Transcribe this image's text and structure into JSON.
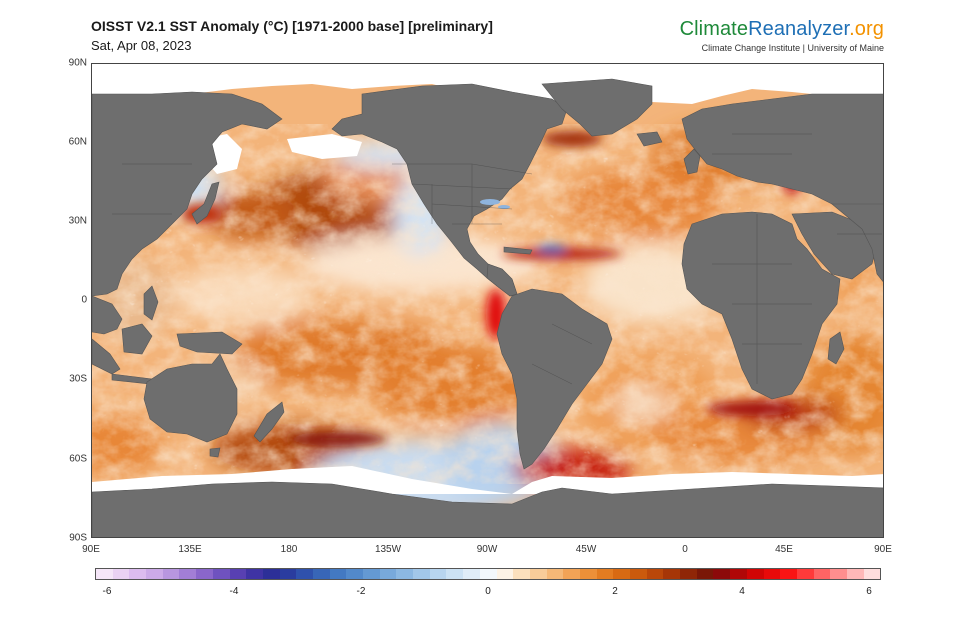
{
  "header": {
    "title": "OISST V2.1 SST Anomaly (°C) [1971-2000 base] [preliminary]",
    "date": "Sat, Apr 08, 2023"
  },
  "brand": {
    "name_part1": "Climate",
    "name_part2": "Reanalyzer",
    "name_part3": ".org",
    "tagline": "Climate Change Institute | University of Maine"
  },
  "map": {
    "projection": "equirectangular",
    "lon_range": [
      90,
      450
    ],
    "lat_range": [
      -90,
      90
    ],
    "land_color": "#6e6e6e",
    "ice_color": "#ffffff",
    "lat_labels": [
      "90N",
      "60N",
      "30N",
      "0",
      "30S",
      "60S",
      "90S"
    ],
    "lon_labels": [
      "90E",
      "135E",
      "180",
      "135W",
      "90W",
      "45W",
      "0",
      "45E",
      "90E"
    ]
  },
  "colorbar": {
    "min": -6,
    "max": 6,
    "tick_labels": [
      "-6",
      "-4",
      "-2",
      "0",
      "2",
      "4",
      "6"
    ],
    "colors": [
      "#f5e6f8",
      "#ead2f3",
      "#dcbcef",
      "#ccaae8",
      "#b896df",
      "#a27ed6",
      "#8a66cb",
      "#6f52bf",
      "#5840b2",
      "#3f33a4",
      "#2c2f98",
      "#2a3c9f",
      "#2f51ad",
      "#3866b8",
      "#4379c2",
      "#5289cb",
      "#6499d3",
      "#78a9db",
      "#8cb8e2",
      "#a2c7e9",
      "#b8d5ef",
      "#cce2f4",
      "#e0edf8",
      "#f3f8fc",
      "#fdf3e6",
      "#fbe0bd",
      "#f8cc99",
      "#f5b877",
      "#f2a356",
      "#ed9038",
      "#e37c21",
      "#d86a13",
      "#cb5a0d",
      "#ba4709",
      "#a63607",
      "#8f2607",
      "#7a1707",
      "#8c0a0a",
      "#b00707",
      "#d10505",
      "#e80a0a",
      "#fa1414",
      "#ff3a3a",
      "#ff6464",
      "#ff8e8e",
      "#ffb8b8",
      "#ffdede"
    ]
  }
}
